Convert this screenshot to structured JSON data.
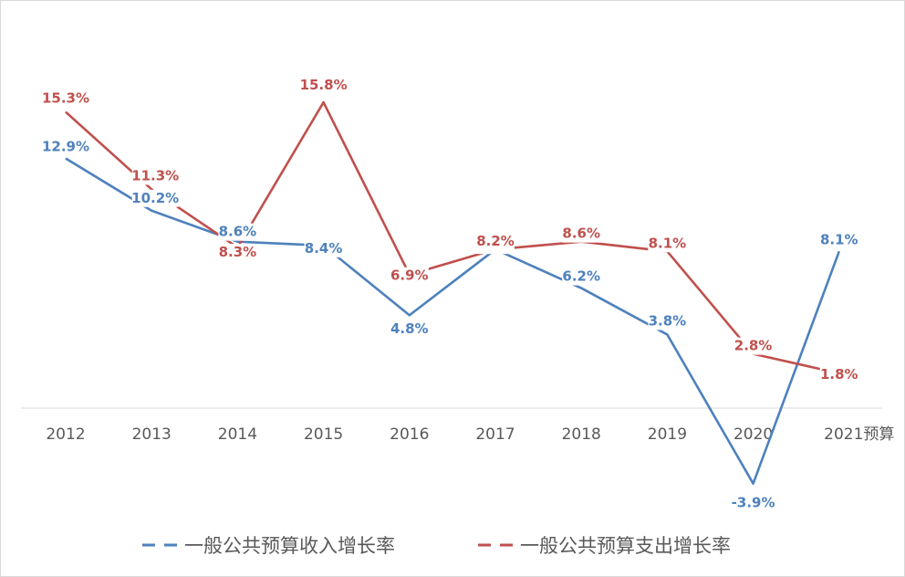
{
  "chart_data": {
    "type": "line",
    "title": "",
    "xlabel": "",
    "ylabel": "",
    "categories": [
      "2012",
      "2013",
      "2014",
      "2015",
      "2016",
      "2017",
      "2018",
      "2019",
      "2020",
      "2021预算"
    ],
    "ylim": [
      -5,
      18
    ],
    "grid": false,
    "legend_position": "bottom",
    "series": [
      {
        "name": "一般公共预算收入增长率",
        "color": "#4e81bd",
        "values": [
          12.9,
          10.2,
          8.6,
          8.4,
          4.8,
          8.2,
          6.2,
          3.8,
          -3.9,
          8.1
        ],
        "labels": [
          "12.9%",
          "10.2%",
          "8.6%",
          "8.4%",
          "4.8%",
          "8.2%",
          "6.2%",
          "3.8%",
          "-3.9%",
          "8.1%"
        ]
      },
      {
        "name": "一般公共预算支出增长率",
        "color": "#c0504d",
        "values": [
          15.3,
          11.3,
          8.3,
          15.8,
          6.9,
          8.2,
          8.6,
          8.1,
          2.8,
          1.8
        ],
        "labels": [
          "15.3%",
          "11.3%",
          "8.3%",
          "15.8%",
          "6.9%",
          "8.2%",
          "8.6%",
          "8.1%",
          "2.8%",
          "1.8%"
        ]
      }
    ]
  }
}
